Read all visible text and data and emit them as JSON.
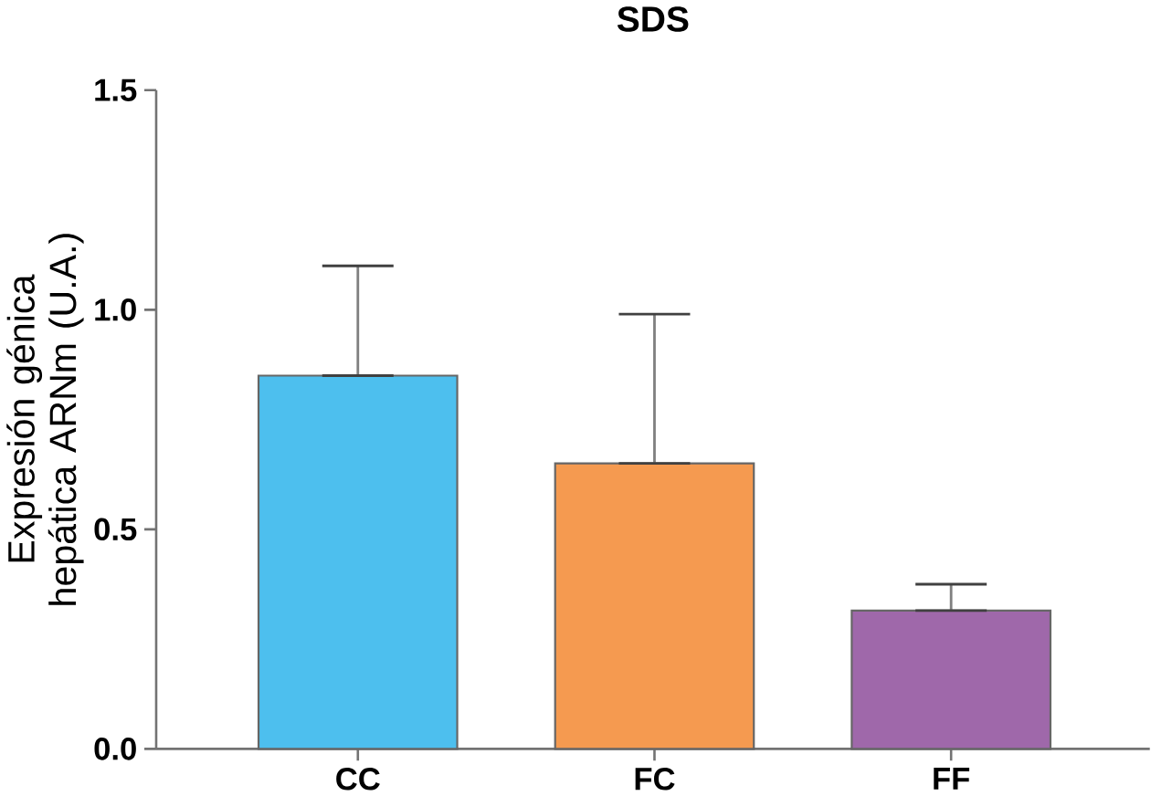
{
  "chart_data": {
    "type": "bar",
    "title": "SDS",
    "ylabel": "Expresión génica hepática ARNm (U.A.)",
    "categories": [
      "CC",
      "FC",
      "FF"
    ],
    "values": [
      0.85,
      0.65,
      0.315
    ],
    "colors": [
      "#4dbfee",
      "#f59a50",
      "#9f68aa"
    ],
    "errors": [
      [
        0.85,
        1.1
      ],
      [
        0.65,
        0.99
      ],
      [
        0.315,
        0.375
      ]
    ],
    "ylim": [
      0,
      1.5
    ],
    "yticks": [
      {
        "value": 0,
        "label": "0.0"
      },
      0.5,
      {
        "value": 1,
        "label": "1.0"
      },
      1.5
    ],
    "grid": false
  }
}
